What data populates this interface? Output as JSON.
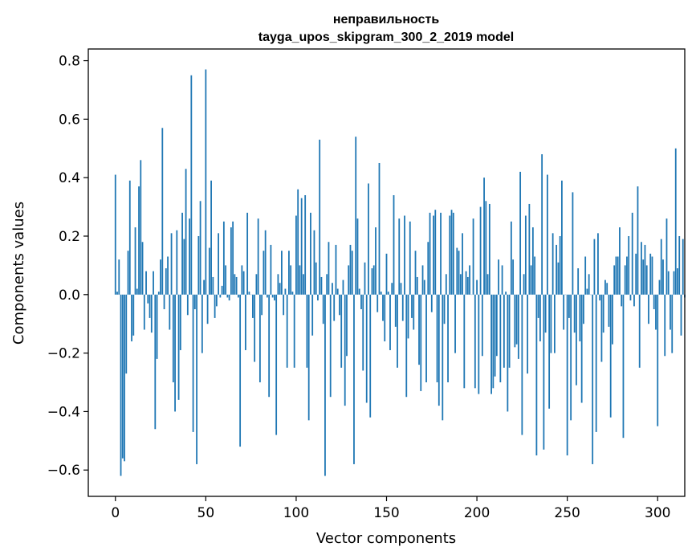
{
  "colors": {
    "bar": "#1f77b4",
    "axis": "#000000",
    "background": "#ffffff"
  },
  "chart_data": {
    "type": "bar",
    "title": "неправильность",
    "subtitle": "tayga_upos_skipgram_300_2_2019 model",
    "xlabel": "Vector components",
    "ylabel": "Components values",
    "xlim": [
      -15,
      315
    ],
    "ylim": [
      -0.69,
      0.84
    ],
    "xticks": [
      0,
      50,
      100,
      150,
      200,
      250,
      300
    ],
    "xtick_labels": [
      "0",
      "50",
      "100",
      "150",
      "200",
      "250",
      "300"
    ],
    "yticks": [
      -0.6,
      -0.4,
      -0.2,
      0.0,
      0.2,
      0.4,
      0.6,
      0.8
    ],
    "ytick_labels": [
      "−0.6",
      "−0.4",
      "−0.2",
      "0.0",
      "0.2",
      "0.4",
      "0.6",
      "0.8"
    ],
    "grid": false,
    "values": [
      0.41,
      0.01,
      0.12,
      -0.62,
      -0.56,
      -0.57,
      -0.27,
      0.15,
      0.39,
      -0.16,
      -0.14,
      0.23,
      0.02,
      0.37,
      0.46,
      0.18,
      -0.12,
      0.08,
      -0.03,
      -0.08,
      -0.13,
      0.08,
      -0.46,
      -0.22,
      0.01,
      0.12,
      0.57,
      -0.05,
      0.09,
      0.13,
      -0.12,
      0.21,
      -0.3,
      -0.4,
      0.22,
      -0.36,
      -0.19,
      0.28,
      0.19,
      0.43,
      -0.07,
      0.26,
      0.75,
      -0.47,
      -0.05,
      -0.58,
      0.2,
      0.32,
      -0.2,
      0.05,
      0.77,
      -0.1,
      0.16,
      0.39,
      0.06,
      -0.08,
      -0.04,
      0.21,
      -0.01,
      0.03,
      0.25,
      0.1,
      -0.01,
      -0.02,
      0.23,
      0.25,
      0.07,
      0.06,
      -0.01,
      -0.52,
      0.1,
      0.08,
      -0.19,
      0.28,
      0.01,
      0.0,
      -0.08,
      -0.23,
      0.07,
      0.26,
      -0.3,
      -0.07,
      0.15,
      0.22,
      -0.01,
      -0.35,
      0.17,
      -0.01,
      -0.02,
      -0.48,
      0.07,
      0.04,
      0.15,
      -0.07,
      0.02,
      -0.25,
      0.15,
      0.1,
      0.01,
      -0.25,
      0.27,
      0.36,
      0.1,
      0.33,
      0.07,
      0.34,
      -0.25,
      -0.43,
      0.28,
      -0.14,
      0.22,
      0.11,
      -0.02,
      0.53,
      0.06,
      -0.1,
      -0.62,
      0.07,
      0.18,
      -0.35,
      0.04,
      -0.09,
      0.17,
      0.02,
      -0.07,
      -0.25,
      0.05,
      -0.38,
      -0.21,
      0.1,
      0.17,
      0.15,
      -0.58,
      0.54,
      0.26,
      0.02,
      -0.05,
      -0.26,
      0.11,
      -0.37,
      0.38,
      -0.42,
      0.09,
      0.1,
      0.23,
      -0.06,
      0.45,
      0.01,
      -0.09,
      -0.16,
      0.14,
      0.01,
      -0.19,
      0.04,
      0.34,
      -0.11,
      -0.25,
      0.26,
      0.04,
      -0.09,
      0.27,
      -0.35,
      -0.15,
      0.25,
      -0.08,
      -0.12,
      0.15,
      0.06,
      -0.24,
      -0.33,
      0.1,
      0.05,
      -0.3,
      0.18,
      0.28,
      -0.06,
      0.27,
      0.29,
      -0.3,
      -0.38,
      0.28,
      -0.43,
      -0.1,
      0.07,
      -0.3,
      0.27,
      0.29,
      0.28,
      -0.2,
      0.16,
      0.15,
      0.07,
      0.21,
      -0.32,
      0.08,
      0.06,
      0.1,
      0.0,
      0.26,
      -0.32,
      0.05,
      -0.34,
      0.3,
      -0.21,
      0.4,
      0.32,
      0.07,
      0.31,
      -0.34,
      -0.32,
      -0.28,
      -0.21,
      0.12,
      -0.3,
      0.1,
      -0.25,
      0.01,
      -0.4,
      -0.25,
      0.25,
      0.12,
      -0.18,
      -0.17,
      -0.22,
      0.42,
      -0.48,
      0.07,
      0.27,
      -0.27,
      0.31,
      0.1,
      0.23,
      0.13,
      -0.55,
      -0.08,
      -0.16,
      0.48,
      -0.53,
      -0.13,
      0.41,
      -0.39,
      -0.2,
      0.21,
      -0.2,
      0.17,
      0.11,
      0.2,
      0.39,
      -0.12,
      0.0,
      -0.55,
      -0.08,
      -0.43,
      0.35,
      -0.13,
      -0.31,
      0.09,
      -0.16,
      -0.37,
      -0.1,
      0.13,
      0.02,
      0.07,
      0.0,
      -0.58,
      0.19,
      -0.47,
      0.21,
      -0.02,
      -0.23,
      -0.13,
      0.05,
      0.04,
      -0.11,
      -0.42,
      -0.17,
      0.1,
      0.13,
      0.13,
      0.23,
      -0.04,
      -0.49,
      0.1,
      0.13,
      0.2,
      -0.02,
      0.28,
      -0.04,
      0.14,
      0.37,
      -0.25,
      0.18,
      0.12,
      0.17,
      0.1,
      -0.1,
      0.14,
      0.13,
      -0.05,
      -0.12,
      -0.45,
      0.05,
      0.19,
      0.12,
      -0.21,
      0.26,
      0.08,
      -0.12,
      -0.2,
      0.08,
      0.5,
      0.09,
      0.2,
      -0.14,
      0.19,
      -0.01
    ]
  }
}
